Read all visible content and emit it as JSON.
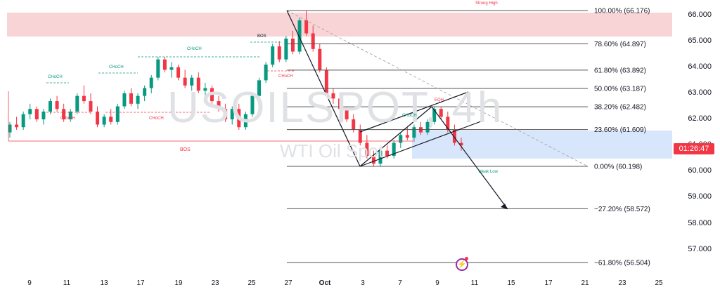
{
  "watermark": {
    "symbol": "USOILSPOT, 4h",
    "description": "WTI Oil Spot"
  },
  "price_axis": [
    "66.000",
    "65.000",
    "64.000",
    "63.000",
    "62.000",
    "61.000",
    "60.000",
    "59.000",
    "58.000",
    "57.000"
  ],
  "current_price_tag": "01:26:47",
  "date_axis": [
    {
      "label": "9",
      "strong": false
    },
    {
      "label": "11",
      "strong": false
    },
    {
      "label": "13",
      "strong": false
    },
    {
      "label": "17",
      "strong": false
    },
    {
      "label": "19",
      "strong": false
    },
    {
      "label": "23",
      "strong": false
    },
    {
      "label": "25",
      "strong": false
    },
    {
      "label": "27",
      "strong": false
    },
    {
      "label": "Oct",
      "strong": true
    },
    {
      "label": "3",
      "strong": false
    },
    {
      "label": "7",
      "strong": false
    },
    {
      "label": "9",
      "strong": false
    },
    {
      "label": "11",
      "strong": false
    },
    {
      "label": "15",
      "strong": false
    },
    {
      "label": "17",
      "strong": false
    },
    {
      "label": "21",
      "strong": false
    },
    {
      "label": "23",
      "strong": false
    },
    {
      "label": "25",
      "strong": false
    }
  ],
  "fib_levels": [
    {
      "label": "100.00% (66.176)",
      "value": 66.176
    },
    {
      "label": "78.60% (64.897)",
      "value": 64.897
    },
    {
      "label": "61.80% (63.892)",
      "value": 63.892
    },
    {
      "label": "50.00% (63.187)",
      "value": 63.187
    },
    {
      "label": "38.20% (62.482)",
      "value": 62.482
    },
    {
      "label": "23.60% (61.609)",
      "value": 61.609
    },
    {
      "label": "0.00% (60.198)",
      "value": 60.198
    },
    {
      "label": "−27.20% (58.572)",
      "value": 58.572
    },
    {
      "label": "−61.80% (56.504)",
      "value": 56.504
    }
  ],
  "annotations": {
    "strong_high": "Strong High",
    "bos_top": "BOS",
    "bos_left": "BOS",
    "weak_low": "Weak Low",
    "choch": "CHoCH",
    "eqh": "EQH"
  },
  "colors": {
    "bull": "#089981",
    "bear": "#f23645",
    "supply_zone": "#f7c5c8",
    "demand_zone": "#d4e3fb",
    "fib_line": "#555555",
    "axis_text": "#131722"
  },
  "chart_data": {
    "type": "candlestick",
    "symbol": "USOILSPOT",
    "timeframe": "4h",
    "price_range": [
      56.2,
      66.5
    ],
    "ohlc_approx": [
      [
        61.5,
        61.9,
        61.3,
        61.8
      ],
      [
        61.8,
        62.1,
        61.6,
        61.7
      ],
      [
        61.7,
        62.3,
        61.6,
        62.2
      ],
      [
        62.2,
        62.6,
        62.0,
        62.4
      ],
      [
        62.4,
        62.5,
        61.9,
        62.0
      ],
      [
        62.0,
        62.4,
        61.8,
        62.3
      ],
      [
        62.3,
        62.8,
        62.2,
        62.7
      ],
      [
        62.7,
        62.9,
        62.3,
        62.4
      ],
      [
        62.4,
        62.6,
        61.9,
        62.0
      ],
      [
        62.0,
        62.4,
        61.9,
        62.3
      ],
      [
        62.3,
        63.0,
        62.2,
        62.9
      ],
      [
        62.9,
        63.3,
        62.6,
        62.7
      ],
      [
        62.7,
        63.0,
        62.2,
        62.3
      ],
      [
        62.3,
        62.5,
        61.7,
        61.8
      ],
      [
        61.8,
        62.2,
        61.7,
        62.1
      ],
      [
        62.1,
        62.4,
        61.8,
        61.9
      ],
      [
        61.9,
        62.6,
        61.8,
        62.5
      ],
      [
        62.5,
        63.1,
        62.4,
        63.0
      ],
      [
        63.0,
        63.2,
        62.5,
        62.6
      ],
      [
        62.6,
        63.0,
        62.4,
        62.9
      ],
      [
        62.9,
        63.3,
        62.7,
        63.2
      ],
      [
        63.2,
        63.7,
        63.0,
        63.6
      ],
      [
        63.6,
        64.4,
        63.5,
        64.3
      ],
      [
        64.3,
        64.4,
        63.8,
        63.9
      ],
      [
        63.9,
        64.2,
        63.6,
        64.0
      ],
      [
        64.0,
        64.1,
        63.5,
        63.6
      ],
      [
        63.6,
        63.9,
        63.2,
        63.3
      ],
      [
        63.3,
        63.7,
        63.1,
        63.6
      ],
      [
        63.6,
        63.8,
        63.0,
        63.1
      ],
      [
        63.1,
        63.4,
        62.8,
        63.2
      ],
      [
        63.2,
        63.3,
        62.6,
        62.7
      ],
      [
        62.7,
        62.9,
        62.3,
        62.4
      ],
      [
        62.4,
        62.6,
        61.9,
        62.0
      ],
      [
        62.0,
        62.5,
        61.8,
        62.4
      ],
      [
        62.4,
        62.6,
        61.6,
        61.7
      ],
      [
        61.7,
        62.3,
        61.6,
        62.2
      ],
      [
        62.2,
        63.0,
        62.1,
        62.9
      ],
      [
        62.9,
        63.6,
        62.8,
        63.5
      ],
      [
        63.5,
        64.2,
        63.4,
        64.1
      ],
      [
        64.1,
        64.9,
        64.0,
        64.8
      ],
      [
        64.8,
        65.0,
        64.2,
        64.3
      ],
      [
        64.3,
        65.2,
        64.2,
        65.1
      ],
      [
        65.1,
        65.4,
        64.5,
        64.6
      ],
      [
        64.6,
        65.9,
        64.5,
        65.8
      ],
      [
        65.8,
        66.18,
        65.2,
        65.3
      ],
      [
        65.3,
        65.6,
        64.6,
        64.7
      ],
      [
        64.7,
        64.9,
        63.8,
        63.9
      ],
      [
        63.9,
        64.0,
        62.9,
        63.0
      ],
      [
        63.0,
        63.2,
        62.6,
        62.8
      ],
      [
        62.8,
        62.9,
        62.3,
        62.4
      ],
      [
        62.4,
        62.5,
        61.9,
        62.0
      ],
      [
        62.0,
        62.2,
        61.5,
        61.6
      ],
      [
        61.6,
        61.8,
        61.0,
        61.1
      ],
      [
        61.1,
        61.4,
        60.5,
        60.6
      ],
      [
        60.6,
        60.8,
        60.2,
        60.3
      ],
      [
        60.3,
        60.9,
        60.2,
        60.8
      ],
      [
        60.8,
        61.0,
        60.5,
        60.6
      ],
      [
        60.6,
        61.2,
        60.5,
        61.1
      ],
      [
        61.1,
        61.5,
        60.9,
        61.4
      ],
      [
        61.4,
        61.7,
        61.2,
        61.3
      ],
      [
        61.3,
        61.8,
        61.2,
        61.7
      ],
      [
        61.7,
        61.9,
        61.4,
        61.5
      ],
      [
        61.5,
        62.0,
        61.4,
        61.9
      ],
      [
        61.9,
        62.5,
        61.8,
        62.4
      ],
      [
        62.4,
        62.5,
        62.0,
        62.1
      ],
      [
        62.1,
        62.3,
        61.5,
        61.6
      ],
      [
        61.6,
        61.8,
        61.0,
        61.1
      ],
      [
        61.1,
        61.3,
        60.8,
        61.0
      ]
    ]
  }
}
